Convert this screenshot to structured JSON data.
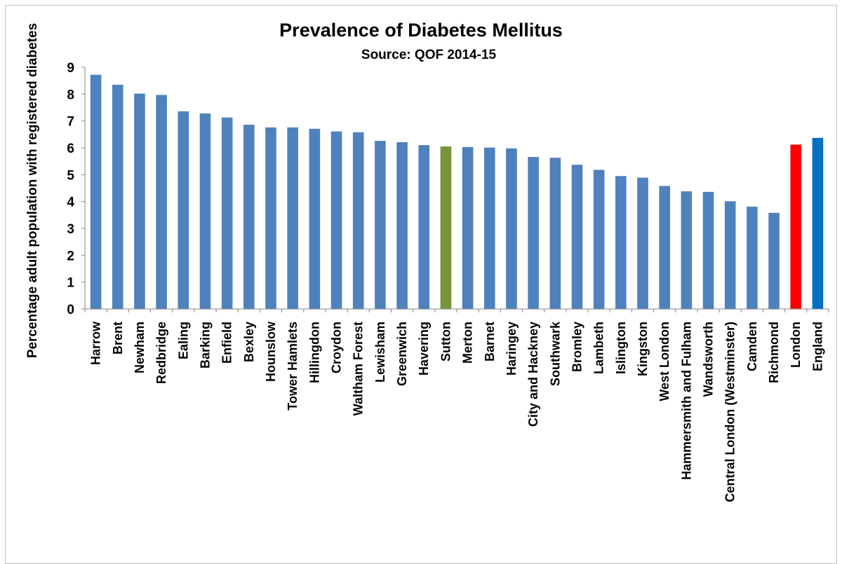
{
  "chart_data": {
    "type": "bar",
    "title": "Prevalence of Diabetes Mellitus",
    "subtitle": "Source: QOF 2014-15",
    "xlabel": "",
    "ylabel": "Percentage adult population with registered diabetes",
    "ylim": [
      0,
      9
    ],
    "yticks": [
      "0",
      "1",
      "2",
      "3",
      "4",
      "5",
      "6",
      "7",
      "8",
      "9"
    ],
    "grid": false,
    "legend": "none",
    "categories": [
      "Harrow",
      "Brent",
      "Newham",
      "Redbridge",
      "Ealing",
      "Barking",
      "Enfield",
      "Bexley",
      "Hounslow",
      "Tower Hamlets",
      "Hillingdon",
      "Croydon",
      "Waltham Forest",
      "Lewisham",
      "Greenwich",
      "Havering",
      "Sutton",
      "Merton",
      "Barnet",
      "Haringey",
      "City and Hackney",
      "Southwark",
      "Bromley",
      "Lambeth",
      "Islington",
      "Kingston",
      "West London",
      "Hammersmith and Fulham",
      "Wandsworth",
      "Central London (Westminster)",
      "Camden",
      "Richmond",
      "London",
      "England"
    ],
    "values": [
      8.72,
      8.35,
      8.02,
      7.97,
      7.36,
      7.28,
      7.13,
      6.86,
      6.76,
      6.76,
      6.71,
      6.61,
      6.58,
      6.26,
      6.21,
      6.1,
      6.05,
      6.03,
      6.01,
      5.98,
      5.66,
      5.63,
      5.37,
      5.18,
      4.95,
      4.89,
      4.58,
      4.38,
      4.36,
      4.01,
      3.81,
      3.58,
      6.12,
      6.37
    ],
    "colors": {
      "default": "#4F81BD",
      "Sutton": "#77933C",
      "London": "#FF0000",
      "England": "#0070C0"
    }
  }
}
